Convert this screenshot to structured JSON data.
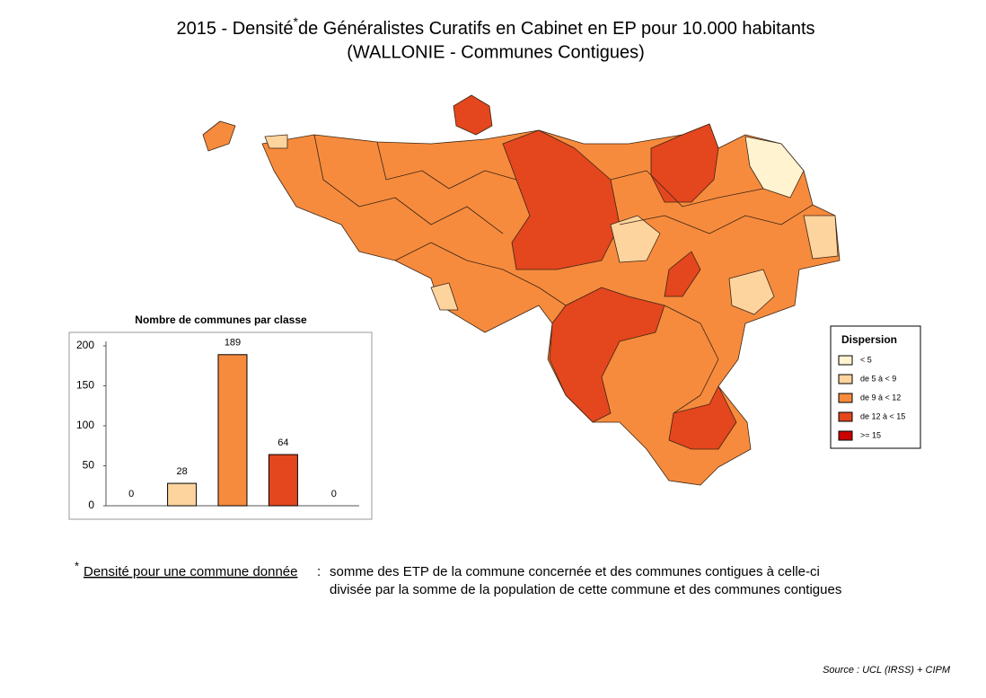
{
  "title": {
    "line1_start": "2015 - Densité",
    "asterisk": "*",
    "line1_end": "de Généralistes Curatifs en Cabinet en EP pour 10.000 habitants",
    "line2": "(WALLONIE - Communes Contigues)"
  },
  "legend": {
    "title": "Dispersion",
    "items": [
      {
        "label": "< 5",
        "color": "#fff3d0"
      },
      {
        "label": "de 5 à < 9",
        "color": "#fdd49e"
      },
      {
        "label": "de 9 à < 12",
        "color": "#f78b3d"
      },
      {
        "label": "de 12 à < 15",
        "color": "#e4461e"
      },
      {
        "label": ">= 15",
        "color": "#cc0000"
      }
    ]
  },
  "chart_data": {
    "type": "bar",
    "title": "Nombre de communes par classe",
    "categories": [
      null,
      null,
      null,
      null,
      null
    ],
    "values": [
      0,
      28,
      189,
      64,
      0
    ],
    "colors": [
      "#fff3d0",
      "#fdd49e",
      "#f78b3d",
      "#e4461e",
      "#cc0000"
    ],
    "ylim": [
      0,
      200
    ],
    "yticks": [
      0,
      50,
      100,
      150,
      200
    ],
    "grid": false
  },
  "footnote": {
    "asterisk": "*",
    "term": "Densité pour une commune donnée",
    "separator": ":",
    "line1": "somme des ETP de la commune concernée et des communes contigues à celle-ci",
    "line2": "divisée par la somme de la population de cette commune et des communes contigues"
  },
  "source": "Source : UCL (IRSS) + CIPM"
}
